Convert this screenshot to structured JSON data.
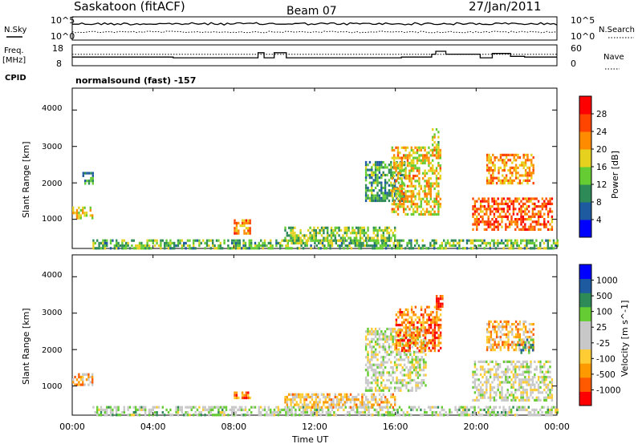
{
  "header": {
    "title": "Saskatoon (fitACF)",
    "beam": "Beam 07",
    "date": "27/Jan/2011"
  },
  "top_panel": {
    "left_label": "N.Sky",
    "right_label": "N.Search",
    "left_ticks": [
      "10^5",
      "10^0"
    ],
    "right_ticks": [
      "10^5",
      "10^0"
    ],
    "nsky_level": 0.7,
    "nsearch_level": 0.35
  },
  "freq_panel": {
    "left_label_1": "Freq.",
    "left_label_2": "[MHz]",
    "right_label": "Nave",
    "left_ticks": [
      "18",
      "8"
    ],
    "right_ticks": [
      "60",
      "0"
    ],
    "nave_dotted_level": 0.45
  },
  "cpid": {
    "label": "CPID",
    "text": "normalsound (fast) -157"
  },
  "x_axis": {
    "title": "Time UT",
    "ticks": [
      "00:00",
      "04:00",
      "08:00",
      "12:00",
      "16:00",
      "20:00",
      "00:00"
    ],
    "range_hours": [
      0,
      24
    ]
  },
  "colors": {
    "power_scale": [
      "#0000ff",
      "#1e5aa0",
      "#2e8b57",
      "#66cc33",
      "#e6d21e",
      "#ff8c00",
      "#ff4500",
      "#ff0000"
    ],
    "velocity_scale": [
      "#ff0000",
      "#ff5a00",
      "#ff9900",
      "#ffcc33",
      "#c8c8c8",
      "#c8c8c8",
      "#66cc33",
      "#2e8b57",
      "#1e5aa0",
      "#0000ff"
    ]
  },
  "chart_data": [
    {
      "type": "heatmap",
      "title": "",
      "xlabel": "Time UT",
      "ylabel": "Slant Range [km]",
      "ylim": [
        200,
        4600
      ],
      "xlim": [
        0,
        24
      ],
      "yticks": [
        "4000",
        "3000",
        "2000",
        "1000"
      ],
      "colorbar": {
        "label": "Power [dB]",
        "ticks": [
          "28",
          "24",
          "20",
          "16",
          "12",
          "8",
          "4"
        ],
        "range": [
          0,
          32
        ]
      },
      "regions": [
        {
          "t0": 0.0,
          "t1": 1.0,
          "r0": 1000,
          "r1": 1350,
          "level": 0.55
        },
        {
          "t0": 0.5,
          "t1": 1.0,
          "r0": 2000,
          "r1": 2300,
          "level": 0.3
        },
        {
          "t0": 1.0,
          "t1": 24.0,
          "r0": 200,
          "r1": 450,
          "level": 0.4
        },
        {
          "t0": 8.0,
          "t1": 8.8,
          "r0": 600,
          "r1": 1000,
          "level": 0.75
        },
        {
          "t0": 10.5,
          "t1": 16.0,
          "r0": 400,
          "r1": 800,
          "level": 0.45
        },
        {
          "t0": 14.5,
          "t1": 16.5,
          "r0": 1500,
          "r1": 2600,
          "level": 0.35
        },
        {
          "t0": 15.8,
          "t1": 18.2,
          "r0": 1100,
          "r1": 3000,
          "level": 0.6
        },
        {
          "t0": 17.8,
          "t1": 18.1,
          "r0": 2800,
          "r1": 3500,
          "level": 0.5
        },
        {
          "t0": 19.8,
          "t1": 23.8,
          "r0": 700,
          "r1": 1600,
          "level": 0.78
        },
        {
          "t0": 20.5,
          "t1": 22.8,
          "r0": 2000,
          "r1": 2800,
          "level": 0.7
        }
      ]
    },
    {
      "type": "heatmap",
      "title": "",
      "xlabel": "Time UT",
      "ylabel": "Slant Range [km]",
      "ylim": [
        200,
        4600
      ],
      "xlim": [
        0,
        24
      ],
      "yticks": [
        "4000",
        "3000",
        "2000",
        "1000"
      ],
      "colorbar": {
        "label": "Velocity [m s^-1]",
        "ticks": [
          "1000",
          "500",
          "100",
          "25",
          "-25",
          "-100",
          "-500",
          "-1000"
        ],
        "range": [
          -1000,
          1000
        ]
      },
      "regions": [
        {
          "t0": 0.0,
          "t1": 1.0,
          "r0": 1000,
          "r1": 1350,
          "level": 0.3
        },
        {
          "t0": 1.0,
          "t1": 24.0,
          "r0": 200,
          "r1": 450,
          "level": 0.55
        },
        {
          "t0": 8.0,
          "t1": 8.8,
          "r0": 700,
          "r1": 850,
          "level": 0.2
        },
        {
          "t0": 10.5,
          "t1": 16.0,
          "r0": 400,
          "r1": 800,
          "level": 0.35
        },
        {
          "t0": 14.5,
          "t1": 17.5,
          "r0": 900,
          "r1": 2600,
          "level": 0.5
        },
        {
          "t0": 16.0,
          "t1": 18.2,
          "r0": 2000,
          "r1": 3200,
          "level": 0.2
        },
        {
          "t0": 18.0,
          "t1": 18.3,
          "r0": 3100,
          "r1": 3500,
          "level": 0.1
        },
        {
          "t0": 19.8,
          "t1": 23.8,
          "r0": 600,
          "r1": 1700,
          "level": 0.5
        },
        {
          "t0": 20.5,
          "t1": 22.8,
          "r0": 2000,
          "r1": 2800,
          "level": 0.3
        },
        {
          "t0": 22.0,
          "t1": 22.8,
          "r0": 1900,
          "r1": 2300,
          "level": 0.72
        }
      ]
    }
  ]
}
